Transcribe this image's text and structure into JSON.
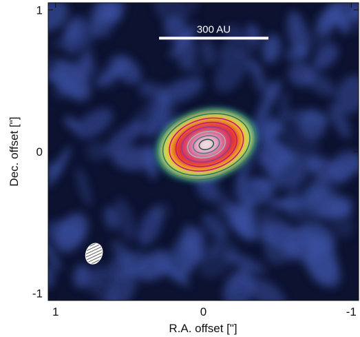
{
  "chart_data": {
    "type": "heatmap",
    "title": "",
    "xlabel": "R.A. offset [\"]",
    "ylabel": "Dec. offset [\"]",
    "xlim": [
      1.05,
      -1.05
    ],
    "ylim": [
      -1.05,
      1.05
    ],
    "x_ticks": [
      {
        "value": 1,
        "label": "1"
      },
      {
        "value": 0,
        "label": "0"
      },
      {
        "value": -1,
        "label": "-1"
      }
    ],
    "y_ticks": [
      {
        "value": 1,
        "label": "1"
      },
      {
        "value": 0,
        "label": "0"
      },
      {
        "value": -1,
        "label": "-1"
      }
    ],
    "scale_bar": {
      "label": "300 AU",
      "x_from": 0.3,
      "x_to": -0.44,
      "y": 0.8
    },
    "source": {
      "center": [
        -0.02,
        0.05
      ],
      "position_angle_deg": 15,
      "contours": [
        {
          "rx": 0.34,
          "ry": 0.24,
          "color": "#2f7a5a"
        },
        {
          "rx": 0.3,
          "ry": 0.21,
          "color": "#2f7a5a"
        },
        {
          "rx": 0.255,
          "ry": 0.18,
          "color": "#c0187a"
        },
        {
          "rx": 0.21,
          "ry": 0.15,
          "color": "#c0187a"
        },
        {
          "rx": 0.17,
          "ry": 0.12,
          "color": "#9a3a8a"
        },
        {
          "rx": 0.13,
          "ry": 0.09,
          "color": "#b0b0b0"
        },
        {
          "rx": 0.09,
          "ry": 0.06,
          "color": "#5a7a8a"
        },
        {
          "rx": 0.05,
          "ry": 0.035,
          "color": "#2a5a4a"
        }
      ]
    },
    "beam": {
      "center": [
        0.74,
        -0.72
      ],
      "major": 0.075,
      "minor": 0.055,
      "position_angle_deg": 20
    },
    "colors": {
      "background": "#0c1230",
      "noise": "#3a4fa0",
      "emission_outer": "#e8e84a",
      "emission_mid": "#f08a1c",
      "emission_inner": "#e2231a",
      "emission_core": "#f2b8c8"
    }
  }
}
